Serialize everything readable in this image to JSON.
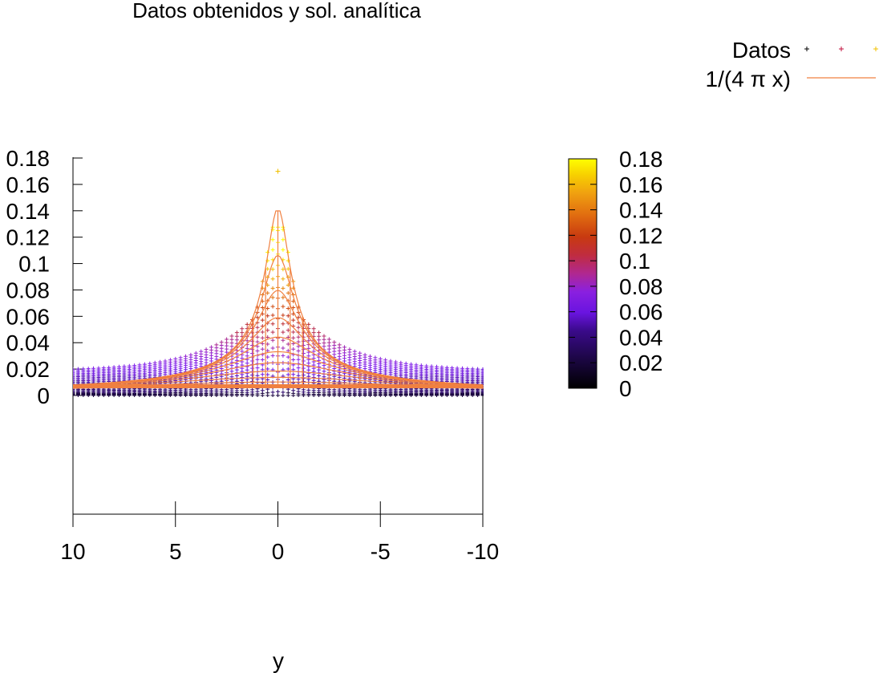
{
  "chart_data": {
    "type": "scatter",
    "title": "Datos obtenidos y sol. analítica",
    "xlabel": "y",
    "ylabel": "",
    "x_ticks": [
      "10",
      "5",
      "0",
      "-5",
      "-10"
    ],
    "x_range": [
      10,
      -10
    ],
    "z_ticks": [
      "0.18",
      "0.16",
      "0.14",
      "0.12",
      "0.1",
      "0.08",
      "0.06",
      "0.04",
      "0.02",
      "0"
    ],
    "z_range": [
      0,
      0.18
    ],
    "colorbar_ticks": [
      "0.18",
      "0.16",
      "0.14",
      "0.12",
      "0.1",
      "0.08",
      "0.06",
      "0.04",
      "0.02",
      "0"
    ],
    "colorbar_range": [
      0,
      0.18
    ],
    "colors": {
      "palette": [
        "#000000",
        "#3a0a8a",
        "#7a1cf0",
        "#9a2bd0",
        "#b8306a",
        "#c0301a",
        "#d85a10",
        "#ec9a10",
        "#f7d000",
        "#ffff00"
      ],
      "analytic_line": "#f08040",
      "datos_markers": [
        "#000000",
        "#c0103c",
        "#f0c000"
      ]
    },
    "legend": {
      "placement": "top-right",
      "entries": [
        {
          "label": "Datos",
          "style": "points"
        },
        {
          "label": "1/(4 π x)",
          "style": "line"
        }
      ]
    },
    "series": [
      {
        "name": "Datos",
        "kind": "points",
        "y_range": [
          -10,
          10
        ],
        "peak_value": 0.17,
        "peak_at_y": 0
      },
      {
        "name": "1/(4 π x)",
        "kind": "surface-lines",
        "y_range": [
          -10,
          10
        ],
        "peak_value": 0.14,
        "edge_value": 0.007
      }
    ],
    "grid": false
  }
}
